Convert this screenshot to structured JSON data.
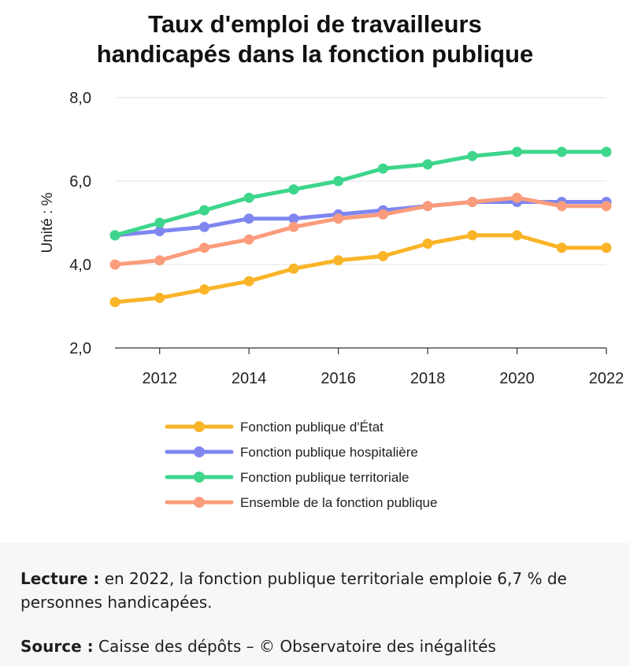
{
  "chart_data": {
    "type": "line",
    "title": [
      "Taux d'emploi de travailleurs",
      "handicapés dans la fonction publique"
    ],
    "ylabel": "Unité : %",
    "xlabel": "",
    "x": [
      2011,
      2012,
      2013,
      2014,
      2015,
      2016,
      2017,
      2018,
      2019,
      2020,
      2021,
      2022
    ],
    "xlim": [
      2011,
      2022
    ],
    "xticks": [
      "2012",
      "2014",
      "2016",
      "2018",
      "2020",
      "2022"
    ],
    "ylim": [
      2.0,
      8.0
    ],
    "yticks": [
      "2,0",
      "4,0",
      "6,0",
      "8,0"
    ],
    "grid": "horizontal",
    "legend_position": "bottom",
    "series": [
      {
        "name": "Fonction publique d'État",
        "color": "#f9b428",
        "values": [
          3.1,
          3.2,
          3.4,
          3.6,
          3.9,
          4.1,
          4.2,
          4.5,
          4.7,
          4.7,
          4.4,
          4.4
        ]
      },
      {
        "name": "Fonction publique hospitalière",
        "color": "#7f86f0",
        "values": [
          4.7,
          4.8,
          4.9,
          5.1,
          5.1,
          5.2,
          5.3,
          5.4,
          5.5,
          5.5,
          5.5,
          5.5
        ]
      },
      {
        "name": "Fonction publique territoriale",
        "color": "#3dd68c",
        "values": [
          4.7,
          5.0,
          5.3,
          5.6,
          5.8,
          6.0,
          6.3,
          6.4,
          6.6,
          6.7,
          6.7,
          6.7
        ]
      },
      {
        "name": "Ensemble de la fonction publique",
        "color": "#fb9c7c",
        "values": [
          4.0,
          4.1,
          4.4,
          4.6,
          4.9,
          5.1,
          5.2,
          5.4,
          5.5,
          5.6,
          5.4,
          5.4
        ]
      }
    ]
  },
  "notes": {
    "reading_label": "Lecture :",
    "reading_text": " en 2022, la fonction publique territoriale emploie 6,7 % de personnes handicapées.",
    "source_label": "Source :",
    "source_text": " Caisse des dépôts – © Observatoire des inégalités"
  }
}
